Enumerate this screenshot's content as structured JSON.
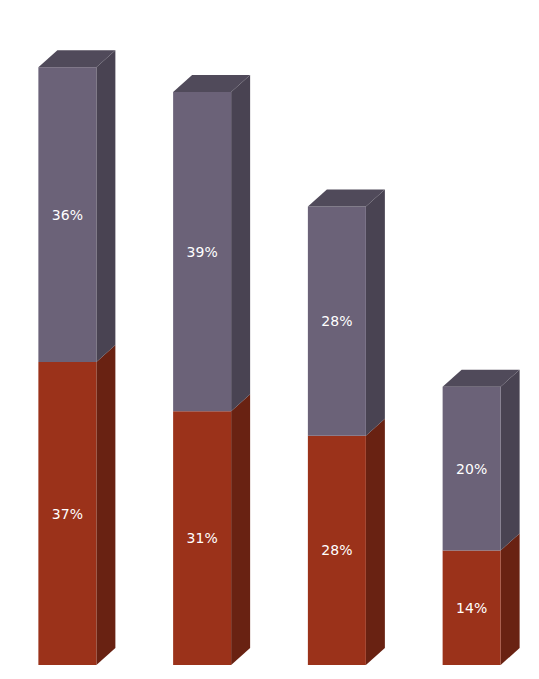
{
  "chart_data": {
    "type": "bar",
    "categories": [
      null,
      null,
      null,
      null
    ],
    "series": [
      {
        "color": "#9b321a",
        "values": [
          37,
          31,
          28,
          14
        ],
        "value_labels": [
          "37%",
          "31%",
          "28%",
          "14%"
        ]
      },
      {
        "color": "#6b6278",
        "values": [
          36,
          39,
          28,
          20
        ],
        "value_labels": [
          "36%",
          "39%",
          "28%",
          "20%"
        ]
      }
    ],
    "ylim": [
      0,
      80
    ],
    "stacked": true,
    "data_labels": true,
    "tick_labels": false,
    "grid": false
  }
}
